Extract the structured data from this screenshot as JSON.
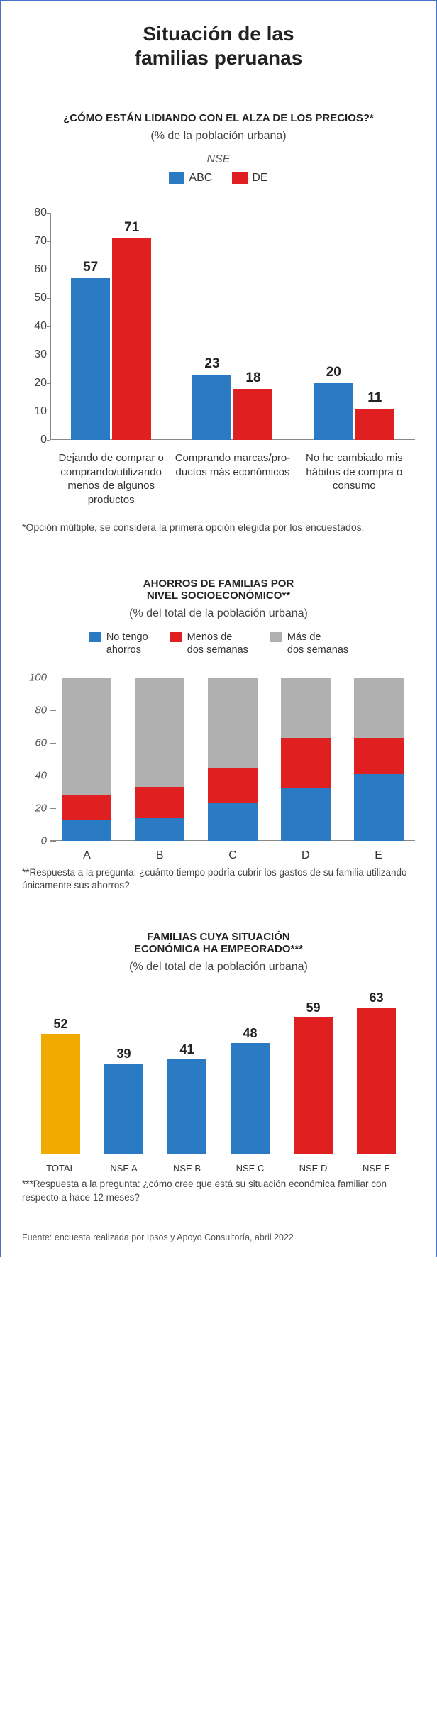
{
  "colors": {
    "blue": "#2a7bc4",
    "red": "#e02020",
    "gray": "#b0b0b0",
    "yellow": "#f2a900"
  },
  "main_title_l1": "Situación de las",
  "main_title_l2": "familias peruanas",
  "chart1": {
    "title": "¿CÓMO ESTÁN LIDIANDO CON EL ALZA DE LOS PRECIOS?*",
    "subtitle": "(% de la población urbana)",
    "nse_label": "NSE",
    "legend": [
      {
        "label": "ABC",
        "color": "#2a7bc4"
      },
      {
        "label": "DE",
        "color": "#e02020"
      }
    ],
    "ymax": 80,
    "yticks": [
      0,
      10,
      20,
      30,
      40,
      50,
      60,
      70,
      80
    ],
    "categories": [
      "Dejando de comprar o comprando/utilizando menos de algunos productos",
      "Comprando marcas/pro­ductos más económicos",
      "No he cambiado mis hábitos de compra o consumo"
    ],
    "series": [
      [
        57,
        71
      ],
      [
        23,
        18
      ],
      [
        20,
        11
      ]
    ],
    "footnote": "*Opción múltiple, se considera la primera opción elegida por los encuestados."
  },
  "chart2": {
    "title_l1": "AHORROS DE FAMILIAS POR",
    "title_l2": "NIVEL SOCIOECONÓMICO**",
    "subtitle": "(% del total de la población urbana)",
    "legend": [
      {
        "l1": "No tengo",
        "l2": "ahorros",
        "color": "#2a7bc4"
      },
      {
        "l1": "Menos de",
        "l2": "dos semanas",
        "color": "#e02020"
      },
      {
        "l1": "Más de",
        "l2": "dos semanas",
        "color": "#b0b0b0"
      }
    ],
    "ymax": 100,
    "yticks": [
      0,
      20,
      40,
      60,
      80,
      100
    ],
    "categories": [
      "A",
      "B",
      "C",
      "D",
      "E"
    ],
    "stacks": [
      [
        13,
        15,
        72
      ],
      [
        14,
        19,
        67
      ],
      [
        23,
        22,
        55
      ],
      [
        32,
        31,
        37
      ],
      [
        41,
        22,
        37
      ]
    ],
    "footnote": "**Respuesta a la pregunta: ¿cuánto tiempo podría cubrir los gastos de su familia utilizando únicamente sus ahorros?"
  },
  "chart3": {
    "title_l1": "FAMILIAS CUYA SITUACIÓN",
    "title_l2": "ECONÓMICA HA EMPEORADO***",
    "subtitle": "(% del total de la población urbana)",
    "ymax": 70,
    "categories": [
      "TOTAL",
      "NSE A",
      "NSE B",
      "NSE C",
      "NSE D",
      "NSE E"
    ],
    "values": [
      52,
      39,
      41,
      48,
      59,
      63
    ],
    "colors": [
      "#f2a900",
      "#2a7bc4",
      "#2a7bc4",
      "#2a7bc4",
      "#e02020",
      "#e02020"
    ],
    "footnote": "***Respuesta a la pregunta: ¿cómo cree que está su situación económica familiar con respecto a hace 12 meses?"
  },
  "source": "Fuente: encuesta realizada por Ipsos y Apoyo Consultoría, abril 2022"
}
